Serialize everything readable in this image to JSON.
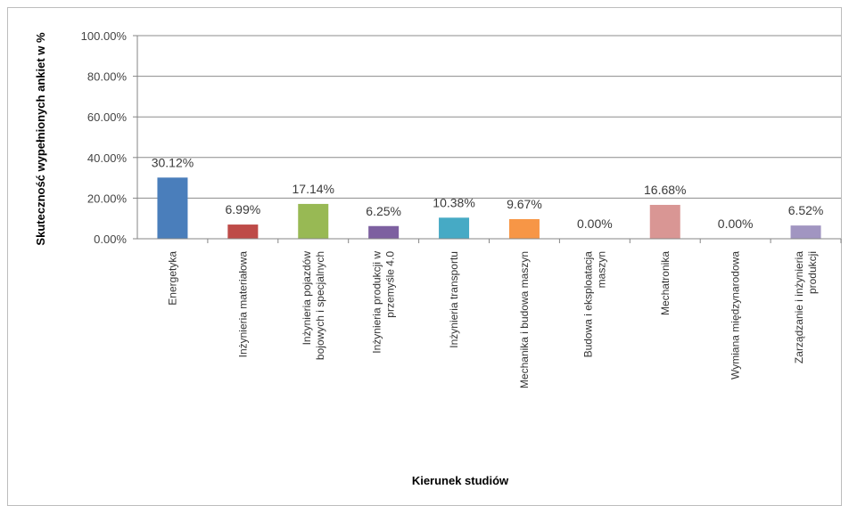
{
  "chart_data": {
    "type": "bar",
    "title": "",
    "xlabel": "Kierunek studiów",
    "ylabel": "Skuteczność wypełnionych ankiet w %",
    "ylim": [
      0,
      100
    ],
    "y_ticks": [
      "0.00%",
      "20.00%",
      "40.00%",
      "60.00%",
      "80.00%",
      "100.00%"
    ],
    "grid": true,
    "legend": "none",
    "categories": [
      [
        "Energetyka"
      ],
      [
        "Inżynieria materiałowa"
      ],
      [
        "Inżynieria pojazdów",
        "bojowych i specjalnych"
      ],
      [
        "Inżynieria produkcji  w",
        "przemyśle 4.0"
      ],
      [
        "Inżynieria transportu"
      ],
      [
        "Mechanika i budowa maszyn"
      ],
      [
        "Budowa i eksploatacja",
        "maszyn"
      ],
      [
        "Mechatronika"
      ],
      [
        "Wymiana międzynarodowa"
      ],
      [
        "Zarządzanie i inżynieria",
        "produkcji"
      ]
    ],
    "values": [
      30.12,
      6.99,
      17.14,
      6.25,
      10.38,
      9.67,
      0.0,
      16.68,
      0.0,
      6.52
    ],
    "data_labels": [
      "30.12%",
      "6.99%",
      "17.14%",
      "6.25%",
      "10.38%",
      "9.67%",
      "0.00%",
      "16.68%",
      "0.00%",
      "6.52%"
    ],
    "colors": [
      "#4a7ebb",
      "#be4b48",
      "#98b954",
      "#7d60a0",
      "#46aac5",
      "#f79646",
      "#2c4d75",
      "#d99694",
      "#b9cde5",
      "#a195c1"
    ]
  }
}
